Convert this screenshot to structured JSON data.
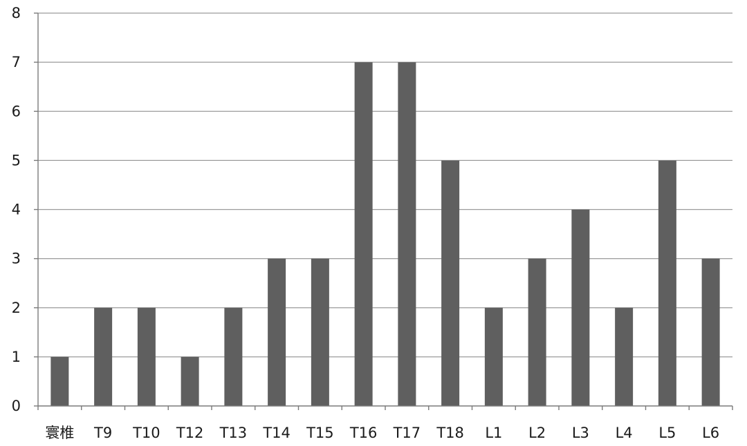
{
  "chart_data": {
    "type": "bar",
    "title": "",
    "xlabel": "",
    "ylabel": "",
    "categories": [
      "寰椎",
      "T9",
      "T10",
      "T12",
      "T13",
      "T14",
      "T15",
      "T16",
      "T17",
      "T18",
      "L1",
      "L2",
      "L3",
      "L4",
      "L5",
      "L6"
    ],
    "values": [
      1,
      2,
      2,
      1,
      2,
      3,
      3,
      7,
      7,
      5,
      2,
      3,
      4,
      2,
      5,
      3
    ],
    "ylim": [
      0,
      8
    ],
    "yticks": [
      "0",
      "1",
      "2",
      "3",
      "4",
      "5",
      "6",
      "7",
      "8"
    ],
    "grid": true,
    "legend": "none",
    "bar_color": "#5f5f5f"
  }
}
